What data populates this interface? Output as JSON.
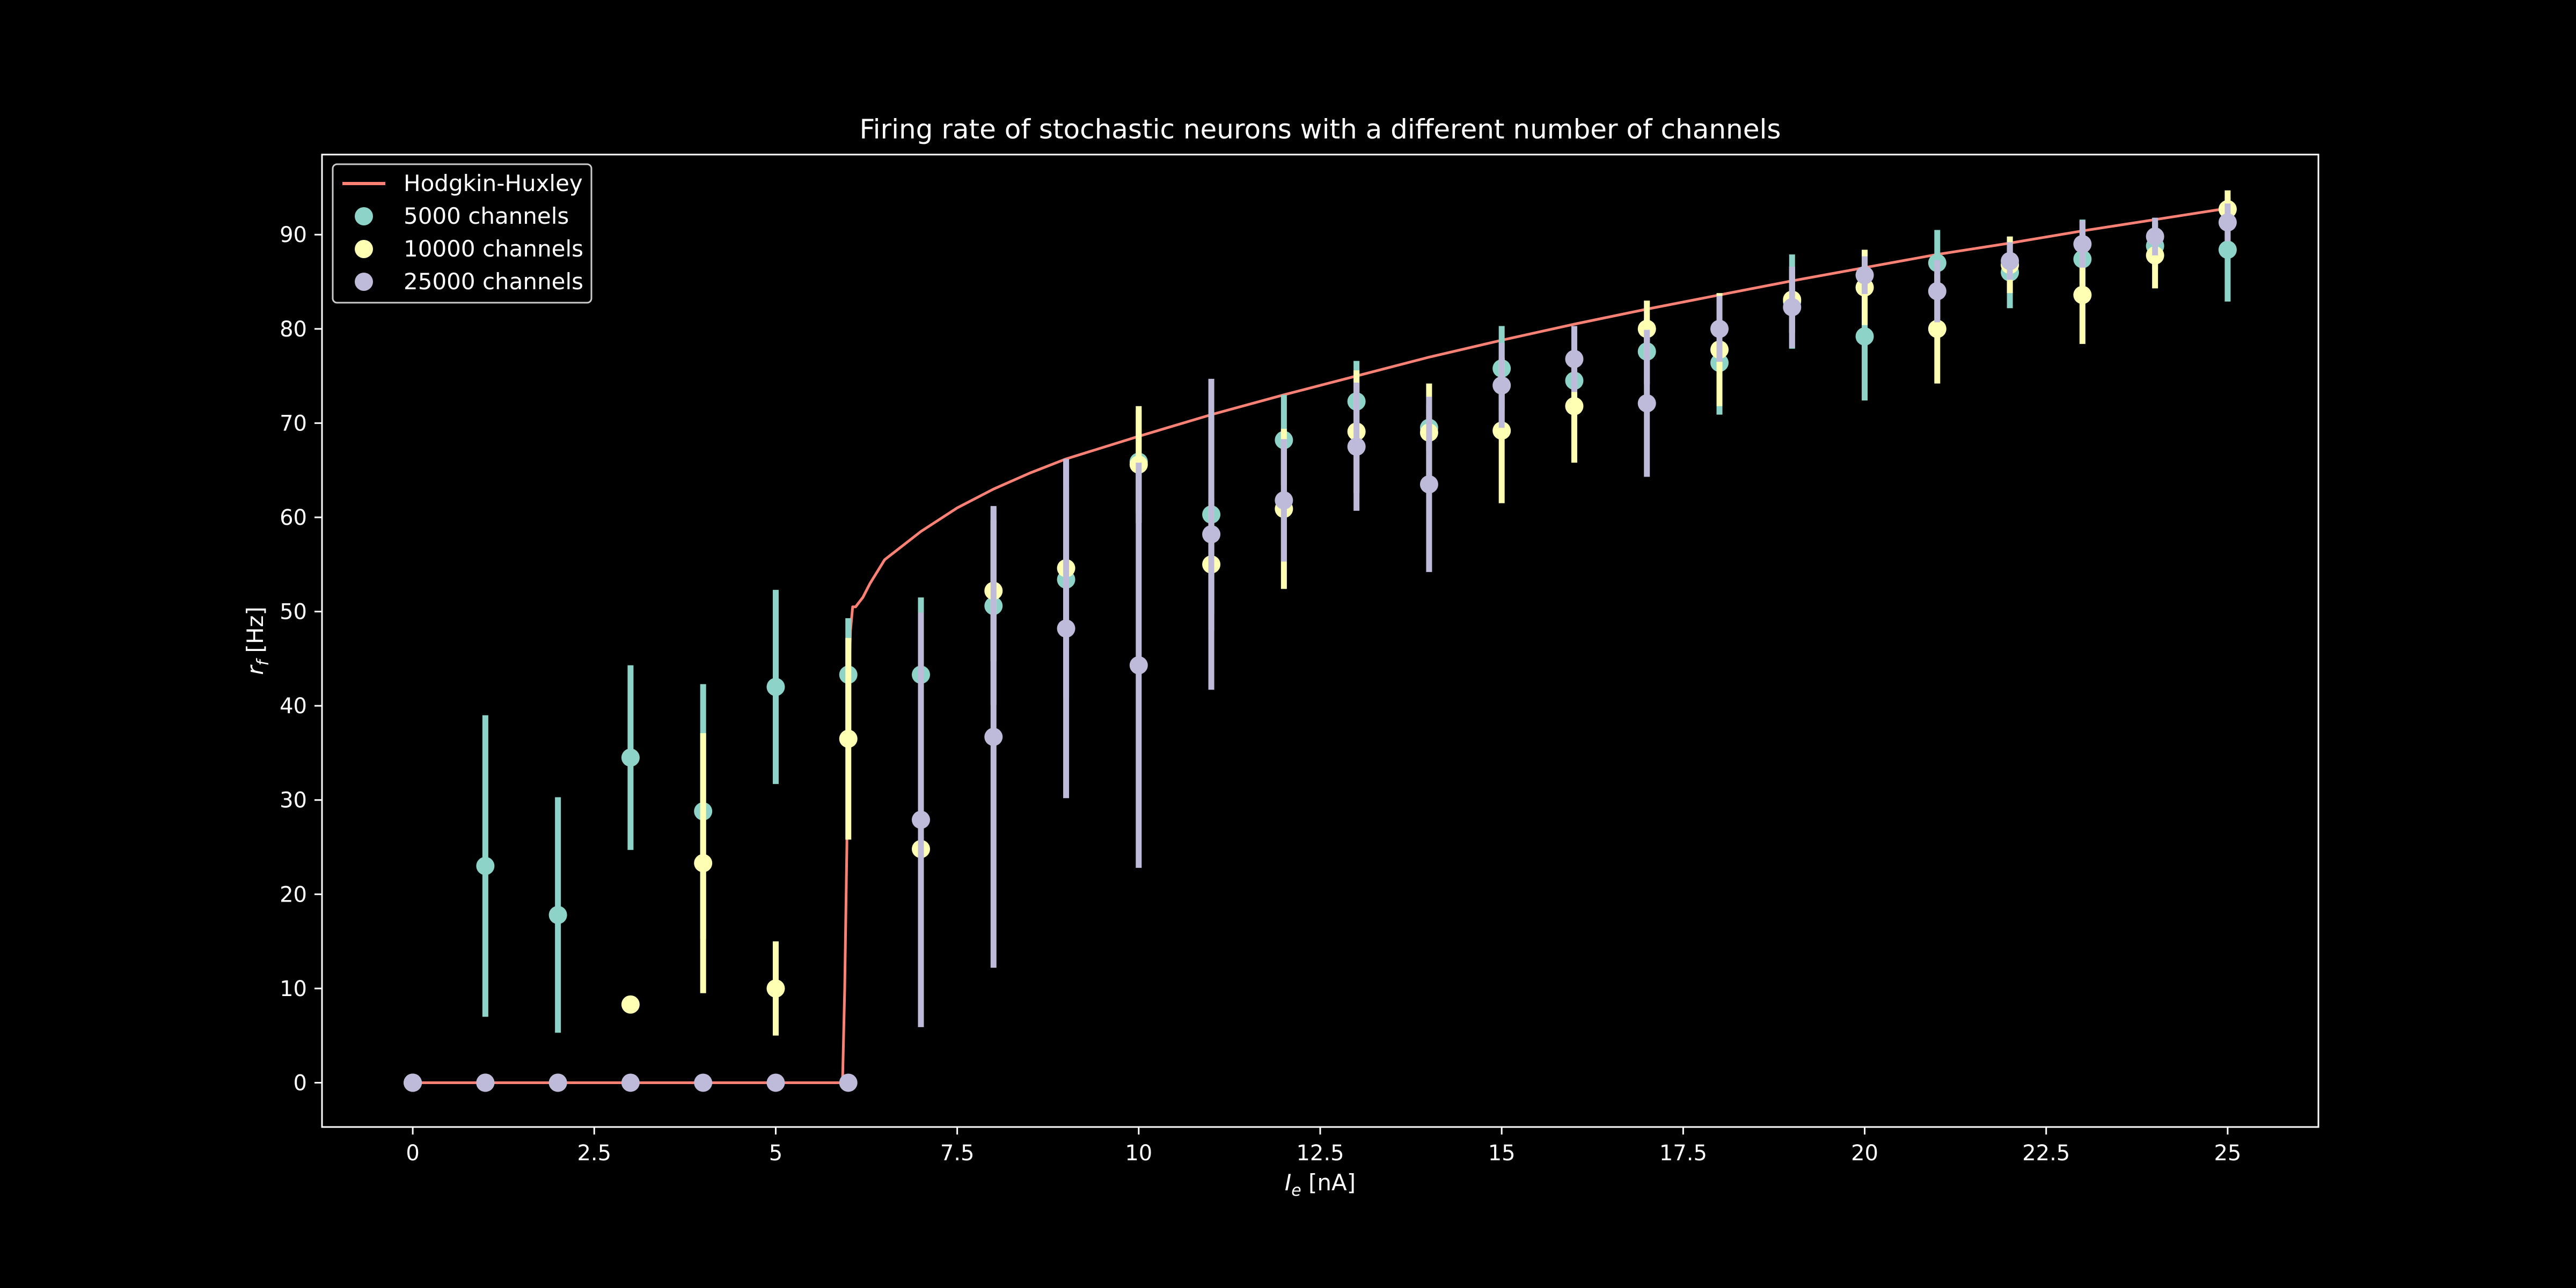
{
  "chart_data": {
    "type": "scatter",
    "title": "Firing rate of stochastic neurons with a different number of channels",
    "xlabel": {
      "main": "I",
      "sub": "e",
      "unit": " [nA]"
    },
    "ylabel": {
      "main": "r",
      "sub": "f",
      "unit": " [Hz]"
    },
    "xlim": [
      -1.25,
      26.25
    ],
    "ylim": [
      -4.7,
      98.5
    ],
    "x_ticks": [
      0,
      2.5,
      5,
      7.5,
      10,
      12.5,
      15,
      17.5,
      20,
      22.5,
      25
    ],
    "x_tick_labels": [
      "0",
      "2.5",
      "5",
      "7.5",
      "10",
      "12.5",
      "15",
      "17.5",
      "20",
      "22.5",
      "25"
    ],
    "y_ticks": [
      0,
      10,
      20,
      30,
      40,
      50,
      60,
      70,
      80,
      90
    ],
    "y_tick_labels": [
      "0",
      "10",
      "20",
      "30",
      "40",
      "50",
      "60",
      "70",
      "80",
      "90"
    ],
    "grid": false,
    "legend_position": "top-left",
    "hh_curve": {
      "name": "Hodgkin-Huxley",
      "color": "#fa8174",
      "x": [
        0,
        5.92,
        5.95,
        5.98,
        6.0,
        6.03,
        6.06,
        6.1,
        6.15,
        6.2,
        6.3,
        6.5,
        7,
        7.5,
        8,
        8.5,
        9,
        10,
        11,
        12,
        13,
        14,
        15,
        16,
        17,
        18,
        19,
        20,
        21,
        22,
        23,
        24,
        25
      ],
      "y": [
        0,
        0,
        10,
        25,
        40,
        48,
        50.5,
        50.5,
        51,
        51.5,
        53,
        55.5,
        58.5,
        61,
        63,
        64.7,
        66.2,
        68.6,
        70.9,
        73.0,
        75.0,
        77.0,
        78.8,
        80.5,
        82.1,
        83.6,
        85.1,
        86.5,
        87.9,
        89.1,
        90.4,
        91.6,
        92.8
      ]
    },
    "series": [
      {
        "name": "5000 channels",
        "color": "#8dd3c7",
        "x": [
          0,
          1,
          2,
          3,
          4,
          5,
          6,
          7,
          8,
          9,
          10,
          11,
          12,
          13,
          14,
          15,
          16,
          17,
          18,
          19,
          20,
          21,
          22,
          23,
          24,
          25
        ],
        "y": [
          0,
          23,
          17.8,
          34.5,
          28.8,
          42,
          43.3,
          43.3,
          50.6,
          53.4,
          65.9,
          60.3,
          68.2,
          72.3,
          69.5,
          75.8,
          74.5,
          77.6,
          76.4,
          82.9,
          79.2,
          87,
          86,
          87.4,
          88.8,
          88.4
        ],
        "err": [
          0,
          16,
          12.5,
          9.8,
          13.5,
          10.3,
          6,
          8.2,
          10.5,
          12.5,
          5.5,
          10.5,
          4.8,
          4.3,
          2.5,
          4.5,
          2.5,
          3.5,
          5.5,
          5,
          6.8,
          3.5,
          3.8,
          4.2,
          2.5,
          5.5
        ]
      },
      {
        "name": "10000 channels",
        "color": "#feffb3",
        "x": [
          0,
          1,
          2,
          3,
          4,
          5,
          6,
          7,
          8,
          9,
          10,
          11,
          12,
          13,
          14,
          15,
          16,
          17,
          18,
          19,
          20,
          21,
          22,
          23,
          24,
          25
        ],
        "y": [
          0,
          0,
          0,
          8.3,
          23.3,
          10,
          36.5,
          24.8,
          52.2,
          54.6,
          65.6,
          55,
          60.9,
          69.1,
          69,
          69.2,
          71.8,
          80,
          77.8,
          83.1,
          84.4,
          80,
          86.8,
          83.6,
          87.8,
          92.7
        ],
        "err": [
          0,
          0,
          0,
          0,
          13.8,
          5,
          10.7,
          11.5,
          7.5,
          8.5,
          6.2,
          7,
          8.5,
          6.5,
          5.2,
          7.7,
          6,
          3,
          6,
          3.5,
          4,
          5.8,
          3,
          5.2,
          3.5,
          2
        ]
      },
      {
        "name": "25000 channels",
        "color": "#bebada",
        "x": [
          0,
          1,
          2,
          3,
          4,
          5,
          6,
          7,
          8,
          9,
          10,
          11,
          12,
          13,
          14,
          15,
          16,
          17,
          18,
          19,
          20,
          21,
          22,
          23,
          24,
          25
        ],
        "y": [
          0,
          0,
          0,
          0,
          0,
          0,
          0,
          27.9,
          36.7,
          48.2,
          44.3,
          58.2,
          61.8,
          67.5,
          63.5,
          74,
          76.8,
          72.1,
          80,
          82.3,
          85.7,
          84,
          87.2,
          89,
          89.8,
          91.3
        ],
        "err": [
          0,
          0,
          0,
          0,
          0,
          0,
          0,
          22,
          24.5,
          18,
          21.5,
          16.5,
          6.5,
          6.8,
          9.3,
          4.5,
          3.5,
          7.8,
          3.5,
          4.3,
          2,
          3.3,
          2,
          2.5,
          2,
          2
        ]
      }
    ]
  }
}
